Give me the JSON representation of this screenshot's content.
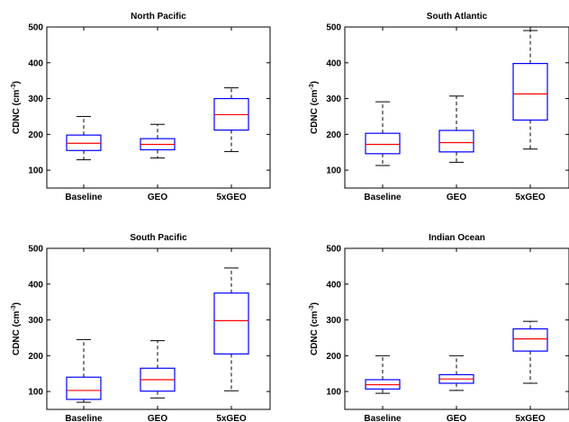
{
  "chart_data": [
    {
      "type": "box",
      "title": "North Pacific",
      "ylabel": "CDNC (cm",
      "ylabel_exponent": "-3",
      "ylabel_suffix": ")",
      "categories": [
        "Baseline",
        "GEO",
        "5xGEO"
      ],
      "ylim": [
        50,
        500
      ],
      "yticks": [
        100,
        200,
        300,
        400,
        500
      ],
      "boxes": [
        {
          "whisker_low": 129,
          "q1": 155,
          "median": 175,
          "q3": 198,
          "whisker_high": 250
        },
        {
          "whisker_low": 134,
          "q1": 157,
          "median": 172,
          "q3": 188,
          "whisker_high": 228
        },
        {
          "whisker_low": 152,
          "q1": 212,
          "median": 255,
          "q3": 300,
          "whisker_high": 330
        }
      ]
    },
    {
      "type": "box",
      "title": "South Atlantic",
      "ylabel": "CDNC (cm",
      "ylabel_exponent": "-3",
      "ylabel_suffix": ")",
      "categories": [
        "Baseline",
        "GEO",
        "5xGEO"
      ],
      "ylim": [
        50,
        500
      ],
      "yticks": [
        100,
        200,
        300,
        400,
        500
      ],
      "boxes": [
        {
          "whisker_low": 113,
          "q1": 146,
          "median": 172,
          "q3": 203,
          "whisker_high": 291
        },
        {
          "whisker_low": 122,
          "q1": 151,
          "median": 177,
          "q3": 211,
          "whisker_high": 307
        },
        {
          "whisker_low": 159,
          "q1": 240,
          "median": 313,
          "q3": 398,
          "whisker_high": 490
        }
      ]
    },
    {
      "type": "box",
      "title": "South Pacific",
      "ylabel": "CDNC (cm",
      "ylabel_exponent": "-3",
      "ylabel_suffix": ")",
      "categories": [
        "Baseline",
        "GEO",
        "5xGEO"
      ],
      "ylim": [
        50,
        500
      ],
      "yticks": [
        100,
        200,
        300,
        400,
        500
      ],
      "boxes": [
        {
          "whisker_low": 70,
          "q1": 78,
          "median": 103,
          "q3": 140,
          "whisker_high": 245
        },
        {
          "whisker_low": 82,
          "q1": 101,
          "median": 133,
          "q3": 165,
          "whisker_high": 242
        },
        {
          "whisker_low": 102,
          "q1": 205,
          "median": 298,
          "q3": 375,
          "whisker_high": 445
        }
      ]
    },
    {
      "type": "box",
      "title": "Indian Ocean",
      "ylabel": "CDNC (cm",
      "ylabel_exponent": "-3",
      "ylabel_suffix": ")",
      "categories": [
        "Baseline",
        "GEO",
        "5xGEO"
      ],
      "ylim": [
        50,
        500
      ],
      "yticks": [
        100,
        200,
        300,
        400,
        500
      ],
      "boxes": [
        {
          "whisker_low": 95,
          "q1": 107,
          "median": 119,
          "q3": 133,
          "whisker_high": 200
        },
        {
          "whisker_low": 103,
          "q1": 123,
          "median": 135,
          "q3": 147,
          "whisker_high": 200
        },
        {
          "whisker_low": 123,
          "q1": 213,
          "median": 247,
          "q3": 275,
          "whisker_high": 296
        }
      ]
    }
  ],
  "colors": {
    "box": "#0000ff",
    "median": "#ff0000",
    "whisker": "#000000",
    "axes": "#000000"
  }
}
